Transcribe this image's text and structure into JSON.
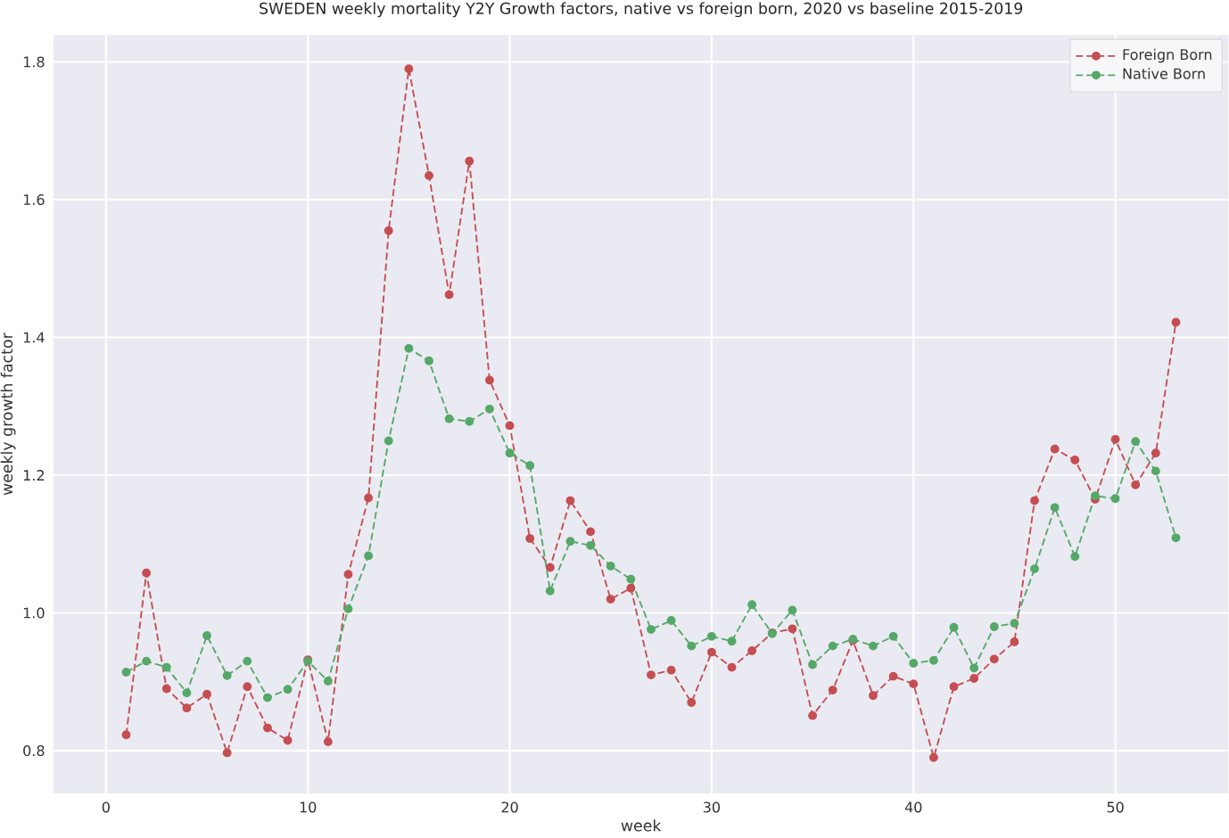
{
  "chart_data": {
    "type": "line",
    "title": "SWEDEN weekly mortality Y2Y Growth factors, native vs foreign born, 2020 vs baseline 2015-2019",
    "xlabel": "week",
    "ylabel": "weekly growth factor",
    "x": [
      1,
      2,
      3,
      4,
      5,
      6,
      7,
      8,
      9,
      10,
      11,
      12,
      13,
      14,
      15,
      16,
      17,
      18,
      19,
      20,
      21,
      22,
      23,
      24,
      25,
      26,
      27,
      28,
      29,
      30,
      31,
      32,
      33,
      34,
      35,
      36,
      37,
      38,
      39,
      40,
      41,
      42,
      43,
      44,
      45,
      46,
      47,
      48,
      49,
      50,
      51,
      52,
      53
    ],
    "series": [
      {
        "name": "Foreign Born",
        "color": "#c44e52",
        "values": [
          0.823,
          1.058,
          0.89,
          0.862,
          0.882,
          0.797,
          0.893,
          0.833,
          0.815,
          0.932,
          0.813,
          1.056,
          1.167,
          1.555,
          1.79,
          1.635,
          1.462,
          1.656,
          1.338,
          1.272,
          1.108,
          1.066,
          1.163,
          1.118,
          1.02,
          1.036,
          0.91,
          0.917,
          0.87,
          0.943,
          0.921,
          0.945,
          0.971,
          0.977,
          0.851,
          0.888,
          0.96,
          0.88,
          0.908,
          0.897,
          0.79,
          0.893,
          0.905,
          0.933,
          0.958,
          1.163,
          1.238,
          1.222,
          1.165,
          1.252,
          1.186,
          1.232,
          1.422
        ]
      },
      {
        "name": "Native Born",
        "color": "#55a868",
        "values": [
          0.914,
          0.93,
          0.921,
          0.884,
          0.967,
          0.909,
          0.93,
          0.877,
          0.889,
          0.93,
          0.901,
          1.006,
          1.083,
          1.25,
          1.384,
          1.366,
          1.282,
          1.278,
          1.296,
          1.232,
          1.214,
          1.032,
          1.104,
          1.098,
          1.068,
          1.049,
          0.976,
          0.989,
          0.952,
          0.966,
          0.959,
          1.012,
          0.97,
          1.004,
          0.925,
          0.952,
          0.962,
          0.952,
          0.966,
          0.927,
          0.931,
          0.979,
          0.92,
          0.98,
          0.985,
          1.064,
          1.153,
          1.082,
          1.17,
          1.166,
          1.249,
          1.206,
          1.109
        ]
      }
    ],
    "xlim": [
      -2.6,
      55.6
    ],
    "ylim": [
      0.738,
      1.839
    ],
    "xticks": [
      0,
      10,
      20,
      30,
      40,
      50
    ],
    "yticks": [
      {
        "value": 0.8,
        "label": "0.8"
      },
      {
        "value": 1.0,
        "label": "1.0"
      },
      {
        "value": 1.2,
        "label": "1.2"
      },
      {
        "value": 1.4,
        "label": "1.4"
      },
      {
        "value": 1.6,
        "label": "1.6"
      },
      {
        "value": 1.8,
        "label": "1.8"
      }
    ],
    "grid": true,
    "legend": "top right",
    "marker": "circle",
    "line_style": "dashed"
  }
}
